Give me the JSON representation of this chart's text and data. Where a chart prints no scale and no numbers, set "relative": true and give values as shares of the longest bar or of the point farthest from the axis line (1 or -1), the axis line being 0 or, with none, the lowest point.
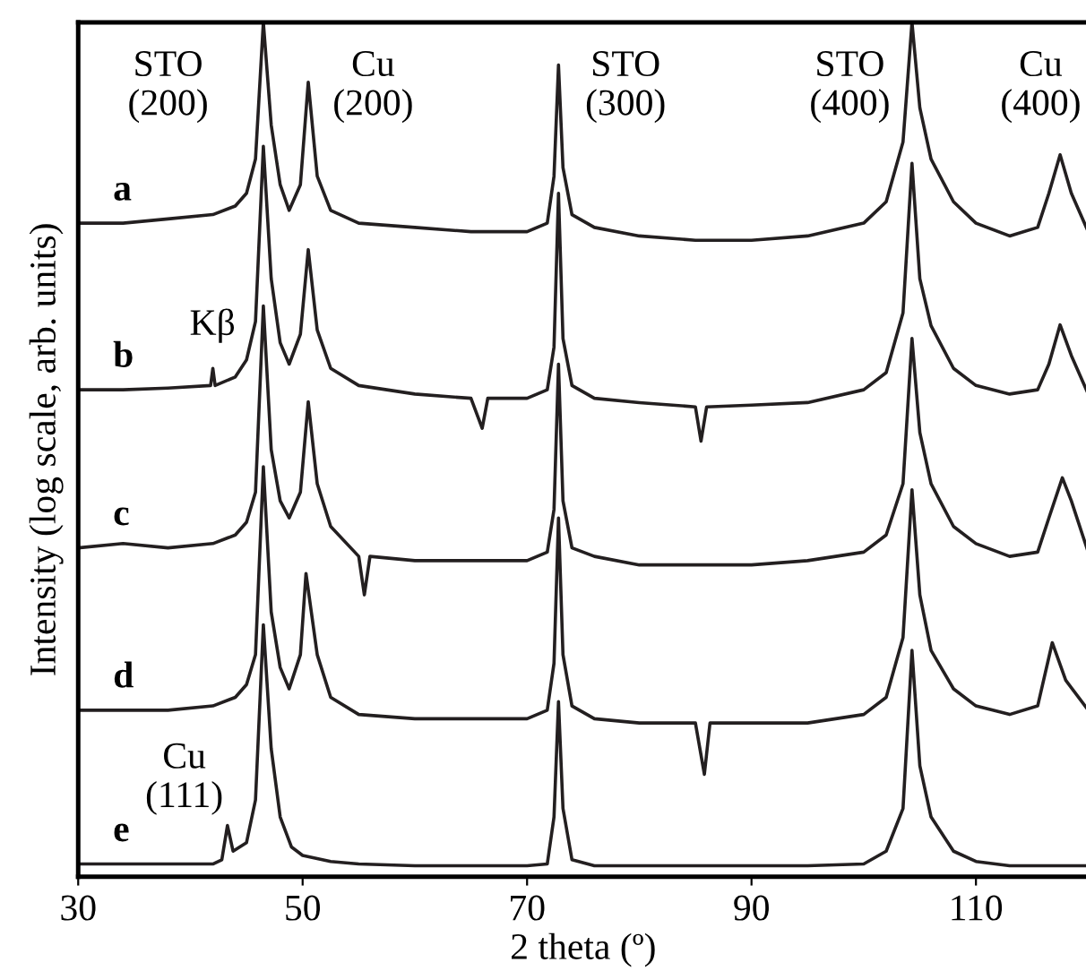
{
  "chart_data": {
    "type": "line",
    "relative": true,
    "xlabel": "2 theta (º)",
    "ylabel": "Intensity (log scale, arb. units)",
    "xlim": [
      30,
      120
    ],
    "xticks": [
      30,
      50,
      70,
      90,
      110
    ],
    "grid": false,
    "legend": false,
    "marker": "none",
    "line_style": "solid",
    "tick_labels": "x",
    "series": [
      {
        "name": "a",
        "color": "#231f20",
        "x": [
          30,
          34,
          38,
          42,
          44,
          45,
          45.8,
          46.5,
          47.2,
          48,
          48.8,
          49.8,
          50.5,
          51.3,
          52.5,
          55,
          60,
          65,
          70,
          71.8,
          72.4,
          72.8,
          73.2,
          74,
          76,
          80,
          85,
          90,
          95,
          100,
          102,
          103.5,
          104.3,
          105,
          106,
          108,
          110,
          113,
          115.5,
          116.5,
          117.5,
          118.5,
          120
        ],
        "values": [
          0.765,
          0.765,
          0.77,
          0.775,
          0.785,
          0.8,
          0.84,
          1.0,
          0.88,
          0.81,
          0.78,
          0.81,
          0.93,
          0.82,
          0.78,
          0.765,
          0.76,
          0.755,
          0.755,
          0.765,
          0.82,
          0.95,
          0.83,
          0.775,
          0.76,
          0.75,
          0.745,
          0.745,
          0.75,
          0.765,
          0.79,
          0.86,
          1.0,
          0.9,
          0.84,
          0.79,
          0.765,
          0.75,
          0.76,
          0.8,
          0.845,
          0.8,
          0.755
        ]
      },
      {
        "name": "b",
        "color": "#231f20",
        "x": [
          30,
          34,
          38,
          41.8,
          42,
          42.2,
          44,
          45,
          45.8,
          46.5,
          47.2,
          48,
          48.8,
          49.8,
          50.5,
          51.3,
          52.5,
          55,
          60,
          65,
          66,
          66.5,
          70,
          71.8,
          72.4,
          72.8,
          73.2,
          74,
          76,
          80,
          85,
          85.5,
          86,
          90,
          95,
          100,
          102,
          103.5,
          104.3,
          105,
          106,
          108,
          110,
          113,
          115.5,
          116.5,
          117.5,
          118.5,
          120
        ],
        "values": [
          0.57,
          0.57,
          0.572,
          0.575,
          0.595,
          0.575,
          0.585,
          0.605,
          0.65,
          0.855,
          0.7,
          0.625,
          0.6,
          0.635,
          0.734,
          0.64,
          0.595,
          0.575,
          0.565,
          0.56,
          0.525,
          0.56,
          0.56,
          0.57,
          0.62,
          0.8,
          0.63,
          0.575,
          0.56,
          0.555,
          0.55,
          0.51,
          0.55,
          0.552,
          0.555,
          0.57,
          0.59,
          0.66,
          0.835,
          0.7,
          0.645,
          0.595,
          0.575,
          0.565,
          0.57,
          0.6,
          0.646,
          0.61,
          0.565
        ]
      },
      {
        "name": "c",
        "color": "#231f20",
        "x": [
          30,
          34,
          38,
          42,
          44,
          45,
          45.8,
          46.5,
          47.2,
          48,
          48.8,
          49.8,
          50.5,
          51.3,
          52.5,
          55,
          55.5,
          56,
          60,
          65,
          70,
          71.8,
          72.4,
          72.8,
          73.2,
          74,
          76,
          80,
          85,
          90,
          95,
          100,
          102,
          103.5,
          104.3,
          105,
          106,
          108,
          110,
          113,
          115.5,
          116.5,
          117.7,
          118.5,
          120
        ],
        "values": [
          0.385,
          0.39,
          0.385,
          0.39,
          0.4,
          0.415,
          0.45,
          0.668,
          0.5,
          0.44,
          0.42,
          0.45,
          0.556,
          0.46,
          0.41,
          0.375,
          0.33,
          0.375,
          0.37,
          0.37,
          0.37,
          0.38,
          0.43,
          0.6,
          0.44,
          0.385,
          0.375,
          0.365,
          0.365,
          0.365,
          0.37,
          0.38,
          0.4,
          0.46,
          0.63,
          0.52,
          0.46,
          0.41,
          0.39,
          0.375,
          0.38,
          0.42,
          0.467,
          0.44,
          0.38
        ]
      },
      {
        "name": "d",
        "color": "#231f20",
        "x": [
          30,
          34,
          38,
          42,
          44,
          45,
          45.8,
          46.5,
          47.2,
          48,
          48.8,
          49.8,
          50.3,
          51.3,
          52.5,
          55,
          60,
          65,
          70,
          71.8,
          72.4,
          72.8,
          73.2,
          74,
          76,
          80,
          85,
          85.8,
          86.3,
          90,
          95,
          100,
          102,
          103.5,
          104.3,
          105,
          106,
          108,
          110,
          113,
          115.5,
          116.8,
          118,
          120
        ],
        "values": [
          0.195,
          0.195,
          0.195,
          0.2,
          0.21,
          0.225,
          0.26,
          0.48,
          0.31,
          0.245,
          0.22,
          0.26,
          0.355,
          0.26,
          0.21,
          0.19,
          0.185,
          0.185,
          0.185,
          0.195,
          0.25,
          0.42,
          0.26,
          0.2,
          0.185,
          0.18,
          0.18,
          0.12,
          0.18,
          0.18,
          0.18,
          0.19,
          0.21,
          0.28,
          0.453,
          0.33,
          0.265,
          0.22,
          0.2,
          0.19,
          0.2,
          0.274,
          0.23,
          0.195
        ]
      },
      {
        "name": "e",
        "color": "#231f20",
        "x": [
          30,
          34,
          38,
          42,
          42.8,
          43.3,
          43.8,
          45,
          45.8,
          46.5,
          47.2,
          48,
          49,
          50,
          52.5,
          55,
          60,
          65,
          70,
          71.8,
          72.4,
          72.8,
          73.2,
          74,
          76,
          80,
          85,
          90,
          95,
          100,
          102,
          103.5,
          104.3,
          105,
          106,
          108,
          110,
          113,
          116,
          120
        ],
        "values": [
          0.015,
          0.015,
          0.015,
          0.015,
          0.02,
          0.06,
          0.03,
          0.04,
          0.09,
          0.295,
          0.15,
          0.07,
          0.035,
          0.025,
          0.018,
          0.015,
          0.013,
          0.013,
          0.013,
          0.015,
          0.07,
          0.205,
          0.08,
          0.02,
          0.013,
          0.013,
          0.013,
          0.013,
          0.013,
          0.015,
          0.03,
          0.08,
          0.265,
          0.13,
          0.07,
          0.03,
          0.018,
          0.013,
          0.013,
          0.013
        ]
      }
    ],
    "annotations": [
      "STO\n(200)",
      "Cu\n(200)",
      "STO\n(300)",
      "STO\n(400)",
      "Cu\n(400)",
      "Kβ",
      "Cu\n(111)"
    ]
  }
}
